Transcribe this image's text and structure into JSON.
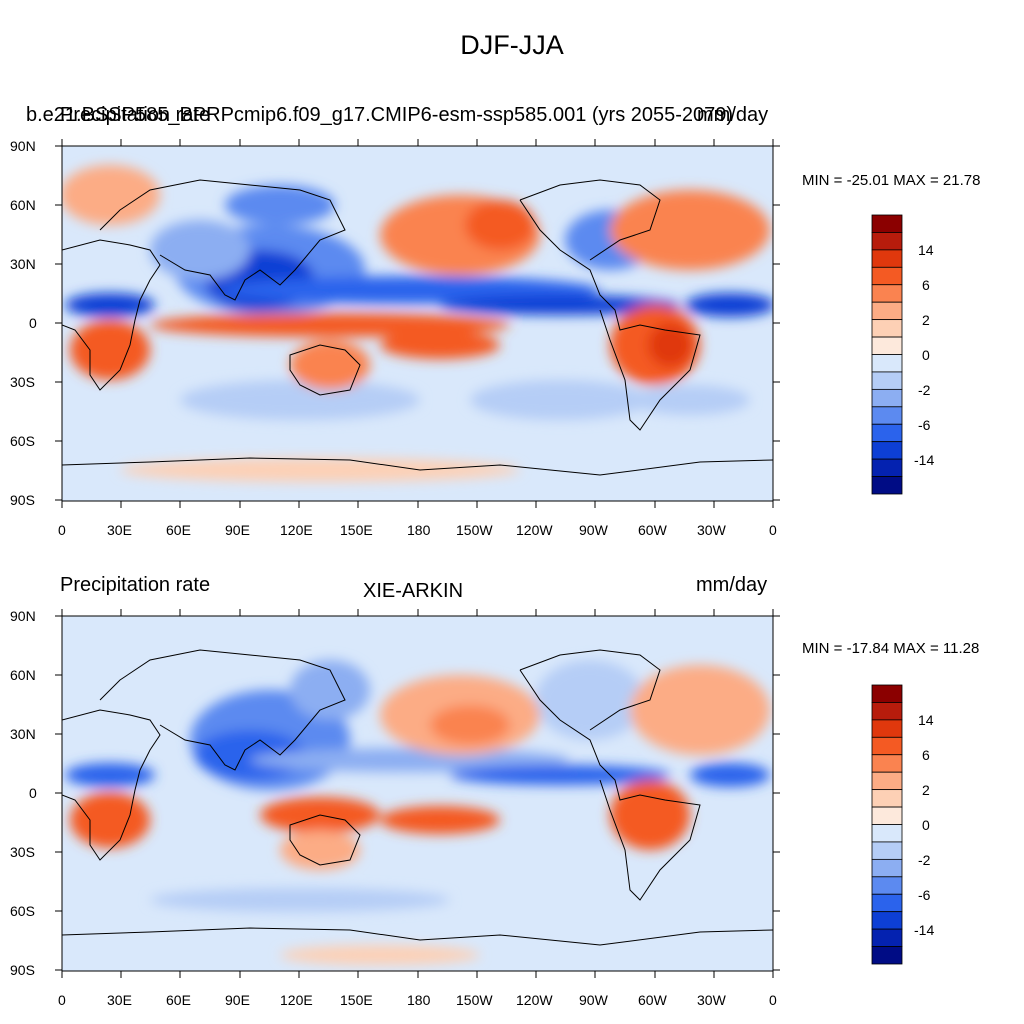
{
  "figure": {
    "title": "DJF-JJA",
    "panels": [
      {
        "left_title_overlap_a": "b.e21.BSSP585_BPRPcmip6.f09_g17.CMIP6-esm-ssp585.001 (yrs 2055-2079)",
        "left_title_overlap_b": "Precipitation rate",
        "right_title_overlap": "mm/day",
        "center_title": "",
        "min_max": "MIN = -25.01 MAX =  21.78"
      },
      {
        "left_title": "Precipitation rate",
        "center_title": "XIE-ARKIN",
        "right_title": "mm/day",
        "min_max": "MIN = -17.84 MAX =  11.28"
      }
    ],
    "lat_ticks": [
      "90N",
      "60N",
      "30N",
      "0",
      "30S",
      "60S",
      "90S"
    ],
    "lon_ticks": [
      "0",
      "30E",
      "60E",
      "90E",
      "120E",
      "150E",
      "180",
      "150W",
      "120W",
      "90W",
      "60W",
      "30W",
      "0"
    ],
    "colorbar": {
      "labels": [
        "14",
        "6",
        "2",
        "0",
        "-2",
        "-6",
        "-14"
      ],
      "colors": [
        "#8b0000",
        "#b71c0c",
        "#e0380d",
        "#f45a23",
        "#fa8350",
        "#fcac85",
        "#fdd0b5",
        "#fde9dc",
        "#d9e8fb",
        "#b5cdf6",
        "#8caef2",
        "#5c8af0",
        "#2b63ec",
        "#0d3fd5",
        "#0422b0",
        "#000c85"
      ]
    }
  }
}
